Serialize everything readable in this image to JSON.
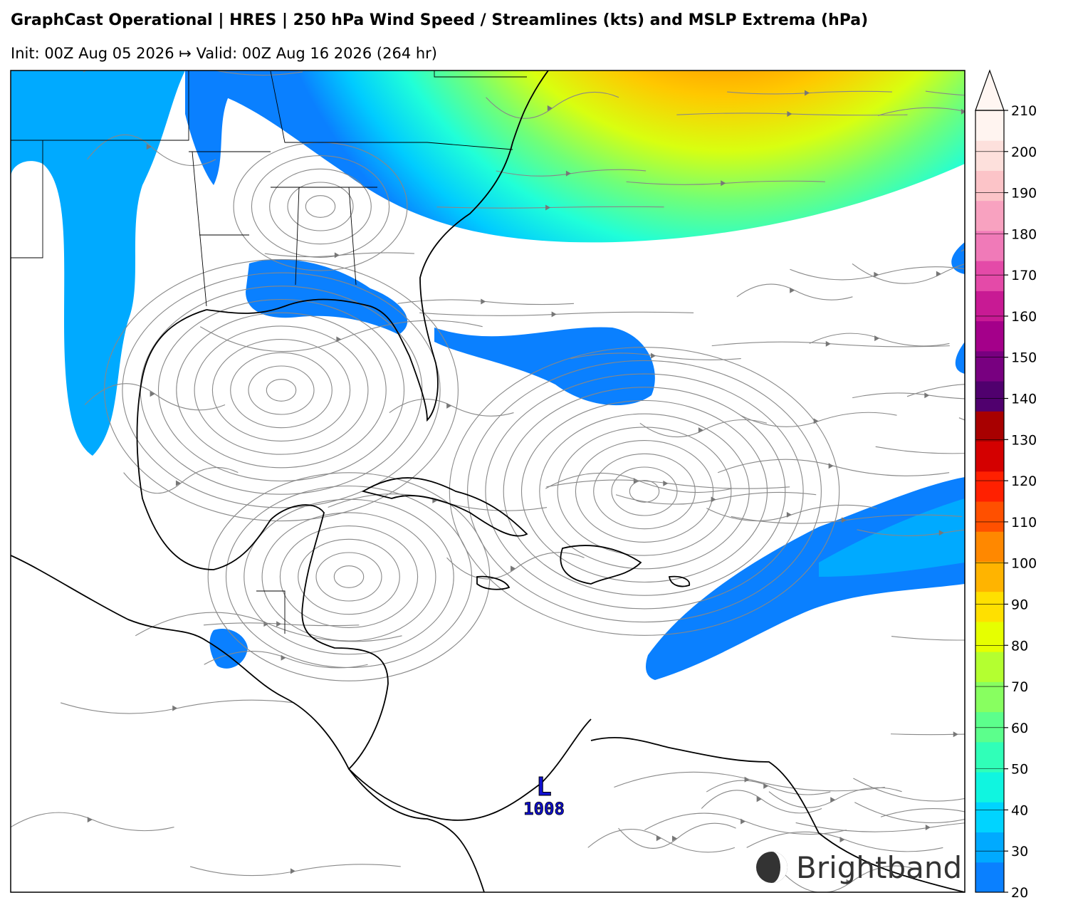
{
  "header": {
    "title": "GraphCast Operational | HRES | 250 hPa Wind Speed / Streamlines (kts) and MSLP Extrema (hPa)",
    "subtitle": "Init: 00Z Aug 05 2026 ↦ Valid: 00Z Aug 16 2026 (264 hr)"
  },
  "colorbar": {
    "ticks": [
      20,
      30,
      40,
      50,
      60,
      70,
      80,
      90,
      100,
      110,
      120,
      130,
      140,
      150,
      160,
      170,
      180,
      190,
      200,
      210
    ],
    "colors": [
      "#0a80ff",
      "#00aaff",
      "#00d4ff",
      "#10f5e0",
      "#30ffb8",
      "#5cff8c",
      "#88ff60",
      "#b4ff30",
      "#e6ff00",
      "#ffe000",
      "#ffb400",
      "#ff8800",
      "#ff5000",
      "#ff2000",
      "#d40000",
      "#a80000",
      "#50006e",
      "#780080",
      "#a4008a",
      "#c81a94",
      "#e44aa8",
      "#f07ab8",
      "#f8a2c0",
      "#fcc4c8",
      "#fde0dc",
      "#fff4f0"
    ],
    "extend_color": "#fff6f2"
  },
  "extrema": [
    {
      "label": "L",
      "value": 1008
    }
  ],
  "logo": "Brightband"
}
